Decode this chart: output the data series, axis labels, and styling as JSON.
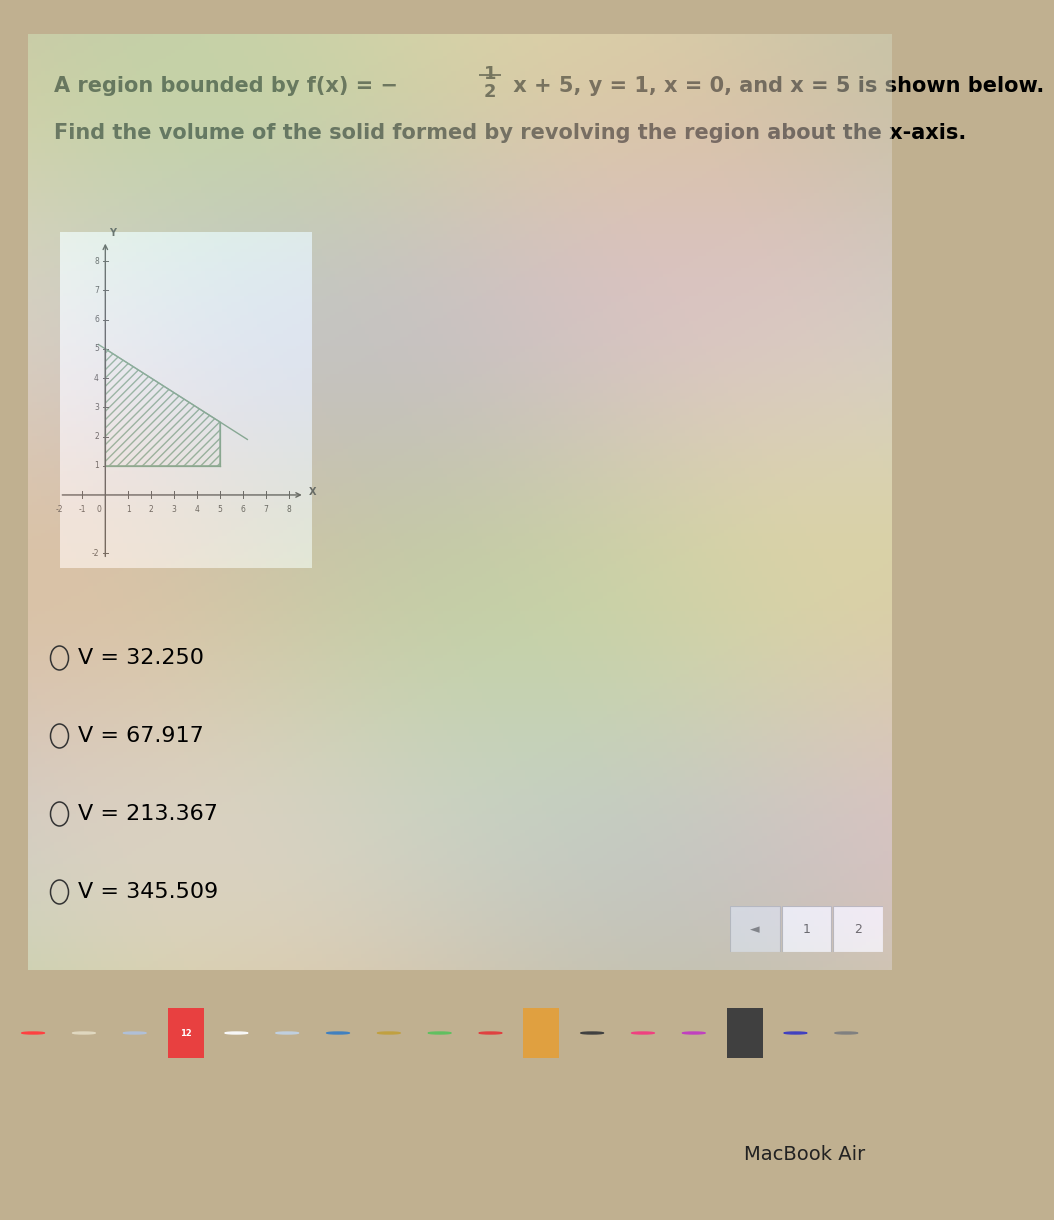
{
  "title_line1a": "A region bounded by f(x) = −",
  "frac_num": "1",
  "frac_den": "2",
  "title_line1b": " x + 5, y = 1, x = 0, and x = 5 is shown below.",
  "title_line2": "Find the volume of the solid formed by revolving the region about the x-axis.",
  "answer_choices": [
    "V = 32.250",
    "V = 67.917",
    "V = 213.367",
    "V = 345.509"
  ],
  "content_bg": "#e8e8e8",
  "content_bg2": "#dde8d0",
  "screen_bg_top": "#d0d0d0",
  "screen_bg_bottom": "#b8b8b8",
  "wavy_bg": "#e8f0e0",
  "plot_region_color": "#3a7a4a",
  "plot_region_hatch": "////",
  "plot_xlim": [
    -2,
    9
  ],
  "plot_ylim": [
    -2.5,
    9
  ],
  "macbook_bar_color": "#3a2060",
  "macbook_bg": "#8b6914",
  "macbook_text": "MacBook Air",
  "dock_color": "#7060a0",
  "nav_bg": "#e0e0e0",
  "nav_border": "#aaaaaa",
  "title_fontsize": 15,
  "choice_fontsize": 16
}
